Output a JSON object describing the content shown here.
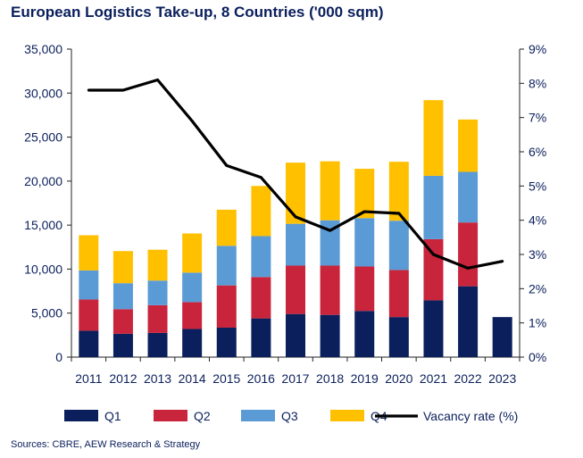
{
  "title": "European Logistics Take-up, 8 Countries  ('000 sqm)",
  "source": "Sources: CBRE, AEW Research & Strategy",
  "chart_data": {
    "type": "bar",
    "stacked": true,
    "categories": [
      "2011",
      "2012",
      "2013",
      "2014",
      "2015",
      "2016",
      "2017",
      "2018",
      "2019",
      "2020",
      "2021",
      "2022",
      "2023"
    ],
    "series": [
      {
        "name": "Q1",
        "color": "#0b1f5c",
        "values": [
          3000,
          2650,
          2750,
          3200,
          3350,
          4400,
          4900,
          4800,
          5250,
          4550,
          6450,
          8050,
          4550
        ]
      },
      {
        "name": "Q2",
        "color": "#c8243c",
        "values": [
          3550,
          2800,
          3150,
          3050,
          4800,
          4700,
          5500,
          5600,
          5050,
          5350,
          6950,
          7250,
          0
        ]
      },
      {
        "name": "Q3",
        "color": "#5b9bd5",
        "values": [
          3300,
          2950,
          2800,
          3350,
          4500,
          4650,
          4750,
          5150,
          5500,
          5600,
          7200,
          5750,
          0
        ]
      },
      {
        "name": "Q4",
        "color": "#ffc000",
        "values": [
          4000,
          3650,
          3500,
          4450,
          4100,
          5700,
          6950,
          6700,
          5600,
          6700,
          8600,
          5950,
          0
        ]
      }
    ],
    "line_series": {
      "name": "Vacancy rate (%)",
      "color": "#000000",
      "axis": "right",
      "values": [
        7.8,
        7.8,
        8.1,
        6.9,
        5.6,
        5.25,
        4.1,
        3.7,
        4.25,
        4.2,
        3.0,
        2.6,
        2.8
      ]
    },
    "ylim": [
      0,
      35000
    ],
    "yticks": [
      "0",
      "5,000",
      "10,000",
      "15,000",
      "20,000",
      "25,000",
      "30,000",
      "35,000"
    ],
    "y2lim": [
      0,
      9
    ],
    "y2ticks": [
      "0%",
      "1%",
      "2%",
      "3%",
      "4%",
      "5%",
      "6%",
      "7%",
      "8%",
      "9%"
    ],
    "grid": false,
    "legend_position": "bottom"
  }
}
